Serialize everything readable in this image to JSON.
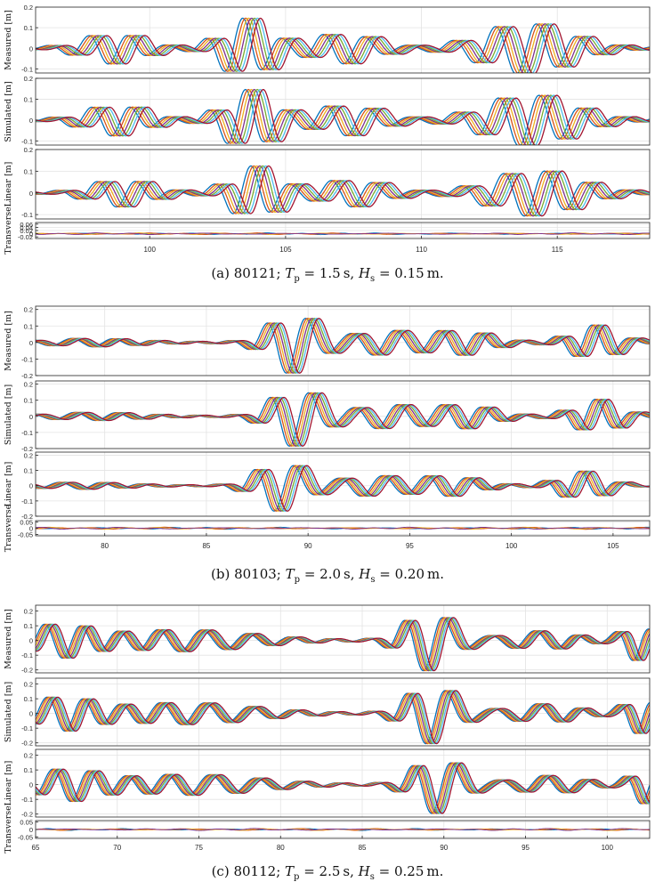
{
  "colors": {
    "series": [
      "#0072bd",
      "#d95319",
      "#edb120",
      "#7e2f8e",
      "#77ac30",
      "#4dbeee",
      "#a2142f"
    ],
    "axes": "#262626",
    "grid": "#e3e3e3"
  },
  "chart_data": [
    {
      "type": "line",
      "caption": {
        "label": "(a)",
        "id": "80121",
        "tp": "1.5",
        "hs": "0.15",
        "tp_sym": "T",
        "tp_sub": "p",
        "hs_sym": "H",
        "hs_sub": "s",
        "unit_s": "s",
        "unit_m": "m."
      },
      "x_range": [
        95.8,
        118.4
      ],
      "x_ticks": [
        100,
        105,
        110,
        115
      ],
      "grid": true,
      "waves": [
        [
          98.8,
          0.07,
          1.5
        ],
        [
          103.7,
          0.14,
          1.2
        ],
        [
          107.3,
          0.07,
          1.6
        ],
        [
          114.0,
          0.12,
          2.2
        ]
      ],
      "panels": [
        {
          "ylabel": "Measured [m]",
          "ylim": [
            -0.12,
            0.2
          ],
          "yticks": [
            0.2,
            0.1,
            0,
            -0.1
          ],
          "kind": "wave",
          "scale": 1.0,
          "shift": 0,
          "period": 1.5
        },
        {
          "ylabel": "Simulated [m]",
          "ylim": [
            -0.12,
            0.2
          ],
          "yticks": [
            0.2,
            0.1,
            0,
            -0.1
          ],
          "kind": "wave",
          "scale": 1.0,
          "shift": 0.1,
          "period": 1.5
        },
        {
          "ylabel": "Linear [m]",
          "ylim": [
            -0.12,
            0.2
          ],
          "yticks": [
            0.2,
            0.1,
            0,
            -0.1
          ],
          "kind": "wave",
          "scale": 0.85,
          "shift": 0.3,
          "period": 1.5
        },
        {
          "ylabel": "Transverse",
          "ylim": [
            -0.03,
            0.07
          ],
          "yticks": [
            0.06,
            0.04,
            0.02,
            0,
            -0.02
          ],
          "tick_labels": [
            "0.06",
            "0.04",
            "0.02",
            "0",
            "-0.02"
          ],
          "kind": "transverse",
          "amp": 0.004,
          "period": 1.5
        }
      ]
    },
    {
      "type": "line",
      "caption": {
        "label": "(b)",
        "id": "80103",
        "tp": "2.0",
        "hs": "0.20",
        "tp_sym": "T",
        "tp_sub": "p",
        "hs_sym": "H",
        "hs_sub": "s",
        "unit_s": "s",
        "unit_m": "m."
      },
      "x_range": [
        76.6,
        106.8
      ],
      "x_ticks": [
        80,
        85,
        90,
        95,
        100,
        105
      ],
      "grid": true,
      "waves": [
        [
          79.5,
          0.02,
          3.0
        ],
        [
          89.4,
          0.18,
          1.6
        ],
        [
          93.8,
          0.07,
          2.0
        ],
        [
          97.6,
          0.07,
          2.0
        ],
        [
          104.2,
          0.1,
          1.6
        ]
      ],
      "panels": [
        {
          "ylabel": "Measured [m]",
          "ylim": [
            -0.2,
            0.22
          ],
          "yticks": [
            0.2,
            0.1,
            0,
            -0.1,
            -0.2
          ],
          "kind": "wave",
          "scale": 1.0,
          "shift": 0,
          "period": 2.0
        },
        {
          "ylabel": "Simulated [m]",
          "ylim": [
            -0.2,
            0.22
          ],
          "yticks": [
            0.2,
            0.1,
            0,
            -0.1,
            -0.2
          ],
          "kind": "wave",
          "scale": 1.0,
          "shift": 0.15,
          "period": 2.0
        },
        {
          "ylabel": "Linear [m]",
          "ylim": [
            -0.2,
            0.22
          ],
          "yticks": [
            0.2,
            0.1,
            0,
            -0.1,
            -0.2
          ],
          "kind": "wave",
          "scale": 0.9,
          "shift": -0.6,
          "period": 2.0
        },
        {
          "ylabel": "Transverse",
          "ylim": [
            -0.06,
            0.06
          ],
          "yticks": [
            0.05,
            0,
            -0.05
          ],
          "tick_labels": [
            "0.05",
            "0",
            "-0.05"
          ],
          "kind": "transverse",
          "amp": 0.006,
          "period": 2.0
        }
      ]
    },
    {
      "type": "line",
      "caption": {
        "label": "(c)",
        "id": "80112",
        "tp": "2.5",
        "hs": "0.25",
        "tp_sym": "T",
        "tp_sub": "p",
        "hs_sym": "H",
        "hs_sub": "s",
        "unit_s": "s",
        "unit_m": "m."
      },
      "x_range": [
        65,
        102.6
      ],
      "x_ticks": [
        65,
        70,
        75,
        80,
        85,
        90,
        95,
        100
      ],
      "grid": true,
      "waves": [
        [
          66.5,
          0.1,
          2.5
        ],
        [
          74.0,
          0.07,
          6.0
        ],
        [
          89.2,
          0.2,
          2.0
        ],
        [
          96.0,
          0.06,
          3.0
        ],
        [
          102.0,
          0.13,
          1.2
        ]
      ],
      "panels": [
        {
          "ylabel": "Measured [m]",
          "ylim": [
            -0.22,
            0.24
          ],
          "yticks": [
            0.2,
            0.1,
            0,
            -0.1,
            -0.2
          ],
          "kind": "wave",
          "scale": 1.0,
          "shift": 0,
          "period": 2.5
        },
        {
          "ylabel": "Simulated [m]",
          "ylim": [
            -0.22,
            0.24
          ],
          "yticks": [
            0.2,
            0.1,
            0,
            -0.1,
            -0.2
          ],
          "kind": "wave",
          "scale": 1.0,
          "shift": 0.15,
          "period": 2.5
        },
        {
          "ylabel": "Linear [m]",
          "ylim": [
            -0.22,
            0.24
          ],
          "yticks": [
            0.2,
            0.1,
            0,
            -0.1,
            -0.2
          ],
          "kind": "wave",
          "scale": 0.95,
          "shift": 0.5,
          "period": 2.5
        },
        {
          "ylabel": "Transverse",
          "ylim": [
            -0.06,
            0.06
          ],
          "yticks": [
            0.05,
            0,
            -0.05
          ],
          "tick_labels": [
            "0.05",
            "0",
            "-0.05"
          ],
          "kind": "transverse",
          "amp": 0.005,
          "period": 2.5
        }
      ]
    }
  ]
}
